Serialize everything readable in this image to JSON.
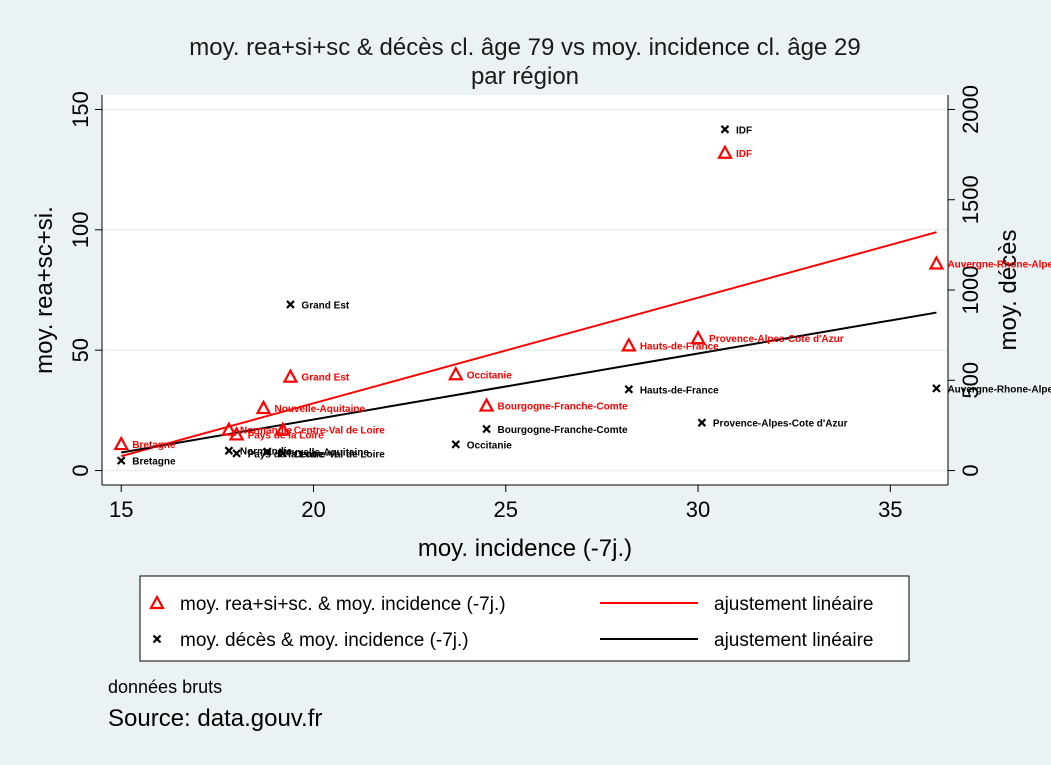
{
  "chart_data": {
    "type": "scatter",
    "title": "moy. rea+si+sc & décès cl. âge 79 vs moy. incidence cl. âge 29",
    "subtitle": "par région",
    "xlabel": "moy. incidence (-7j.)",
    "ylabel_left": "moy. rea+sc+si.",
    "ylabel_right": "moy. décès",
    "xlim": [
      14.5,
      36.5
    ],
    "ylim_left": [
      -6,
      156
    ],
    "ylim_right": [
      -80,
      2080
    ],
    "x_ticks": [
      15,
      20,
      25,
      30,
      35
    ],
    "y_ticks_left": [
      0,
      50,
      100,
      150
    ],
    "y_ticks_right": [
      0,
      500,
      1000,
      1500,
      2000
    ],
    "grid": true,
    "legend_position": "bottom",
    "series": [
      {
        "name": "moy. rea+si+sc. & moy. incidence (-7j.)",
        "axis": "left",
        "marker": "triangle",
        "color": "#ff0000",
        "points": [
          {
            "label": "IDF",
            "x": 30.7,
            "y": 132
          },
          {
            "label": "Auvergne-Rhone-Alpes",
            "x": 36.2,
            "y": 86
          },
          {
            "label": "Provence-Alpes-Cote d'Azur",
            "x": 30.0,
            "y": 55
          },
          {
            "label": "Hauts-de-France",
            "x": 28.2,
            "y": 52
          },
          {
            "label": "Occitanie",
            "x": 23.7,
            "y": 40
          },
          {
            "label": "Grand Est",
            "x": 19.4,
            "y": 39
          },
          {
            "label": "Bourgogne-Franche-Comte",
            "x": 24.5,
            "y": 27
          },
          {
            "label": "Nouvelle-Aquitaine",
            "x": 18.7,
            "y": 26
          },
          {
            "label": "Normandie",
            "x": 17.8,
            "y": 17
          },
          {
            "label": "Centre-Val de Loire",
            "x": 19.2,
            "y": 17
          },
          {
            "label": "Pays de la Loire",
            "x": 18.0,
            "y": 15
          },
          {
            "label": "Bretagne",
            "x": 15.0,
            "y": 11
          }
        ]
      },
      {
        "name": "moy. décès & moy. incidence (-7j.)",
        "axis": "right",
        "marker": "x",
        "color": "#000000",
        "points": [
          {
            "label": "IDF",
            "x": 30.7,
            "y": 1890
          },
          {
            "label": "Grand Est",
            "x": 19.4,
            "y": 920
          },
          {
            "label": "Hauts-de-France",
            "x": 28.2,
            "y": 450
          },
          {
            "label": "Auvergne-Rhone-Alpes",
            "x": 36.2,
            "y": 455
          },
          {
            "label": "Provence-Alpes-Cote d'Azur",
            "x": 30.1,
            "y": 265
          },
          {
            "label": "Bourgogne-Franche-Comte",
            "x": 24.5,
            "y": 230
          },
          {
            "label": "Occitanie",
            "x": 23.7,
            "y": 145
          },
          {
            "label": "Normandie",
            "x": 17.8,
            "y": 110
          },
          {
            "label": "Nouvelle-Aquitaine",
            "x": 18.8,
            "y": 105
          },
          {
            "label": "Pays de la Loire",
            "x": 18.0,
            "y": 95
          },
          {
            "label": "Centre-Val de Loire",
            "x": 19.2,
            "y": 95
          },
          {
            "label": "Bretagne",
            "x": 15.0,
            "y": 55
          }
        ]
      }
    ],
    "fits": [
      {
        "name": "ajustement linéaire",
        "axis": "left",
        "color": "#ff0000",
        "x": [
          15.0,
          36.2
        ],
        "y": [
          6,
          99
        ]
      },
      {
        "name": "ajustement linéaire",
        "axis": "right",
        "color": "#000000",
        "x": [
          15.0,
          36.2
        ],
        "y": [
          100,
          875
        ]
      }
    ]
  },
  "notes": {
    "line1": "données bruts",
    "line2": "Source: data.gouv.fr"
  }
}
